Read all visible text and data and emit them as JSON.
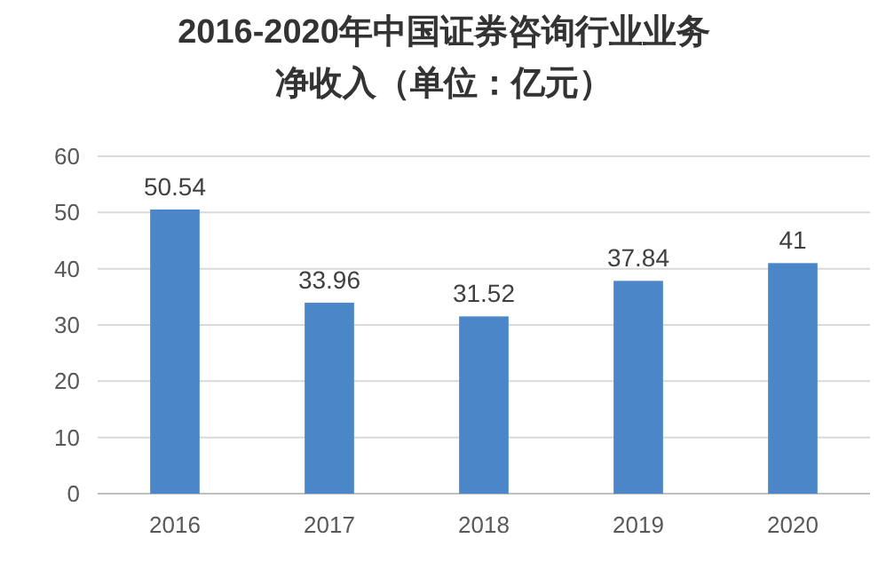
{
  "chart_data": {
    "type": "bar",
    "title": "2016-2020年中国证券咨询行业业务净收入（单位：亿元）",
    "categories": [
      "2016",
      "2017",
      "2018",
      "2019",
      "2020"
    ],
    "values": [
      50.54,
      33.96,
      31.52,
      37.84,
      41
    ],
    "color": "#4a86c8",
    "ylim": [
      0,
      60
    ],
    "yticks": [
      0,
      10,
      20,
      30,
      40,
      50,
      60
    ],
    "grid": "y",
    "data_labels": true
  }
}
